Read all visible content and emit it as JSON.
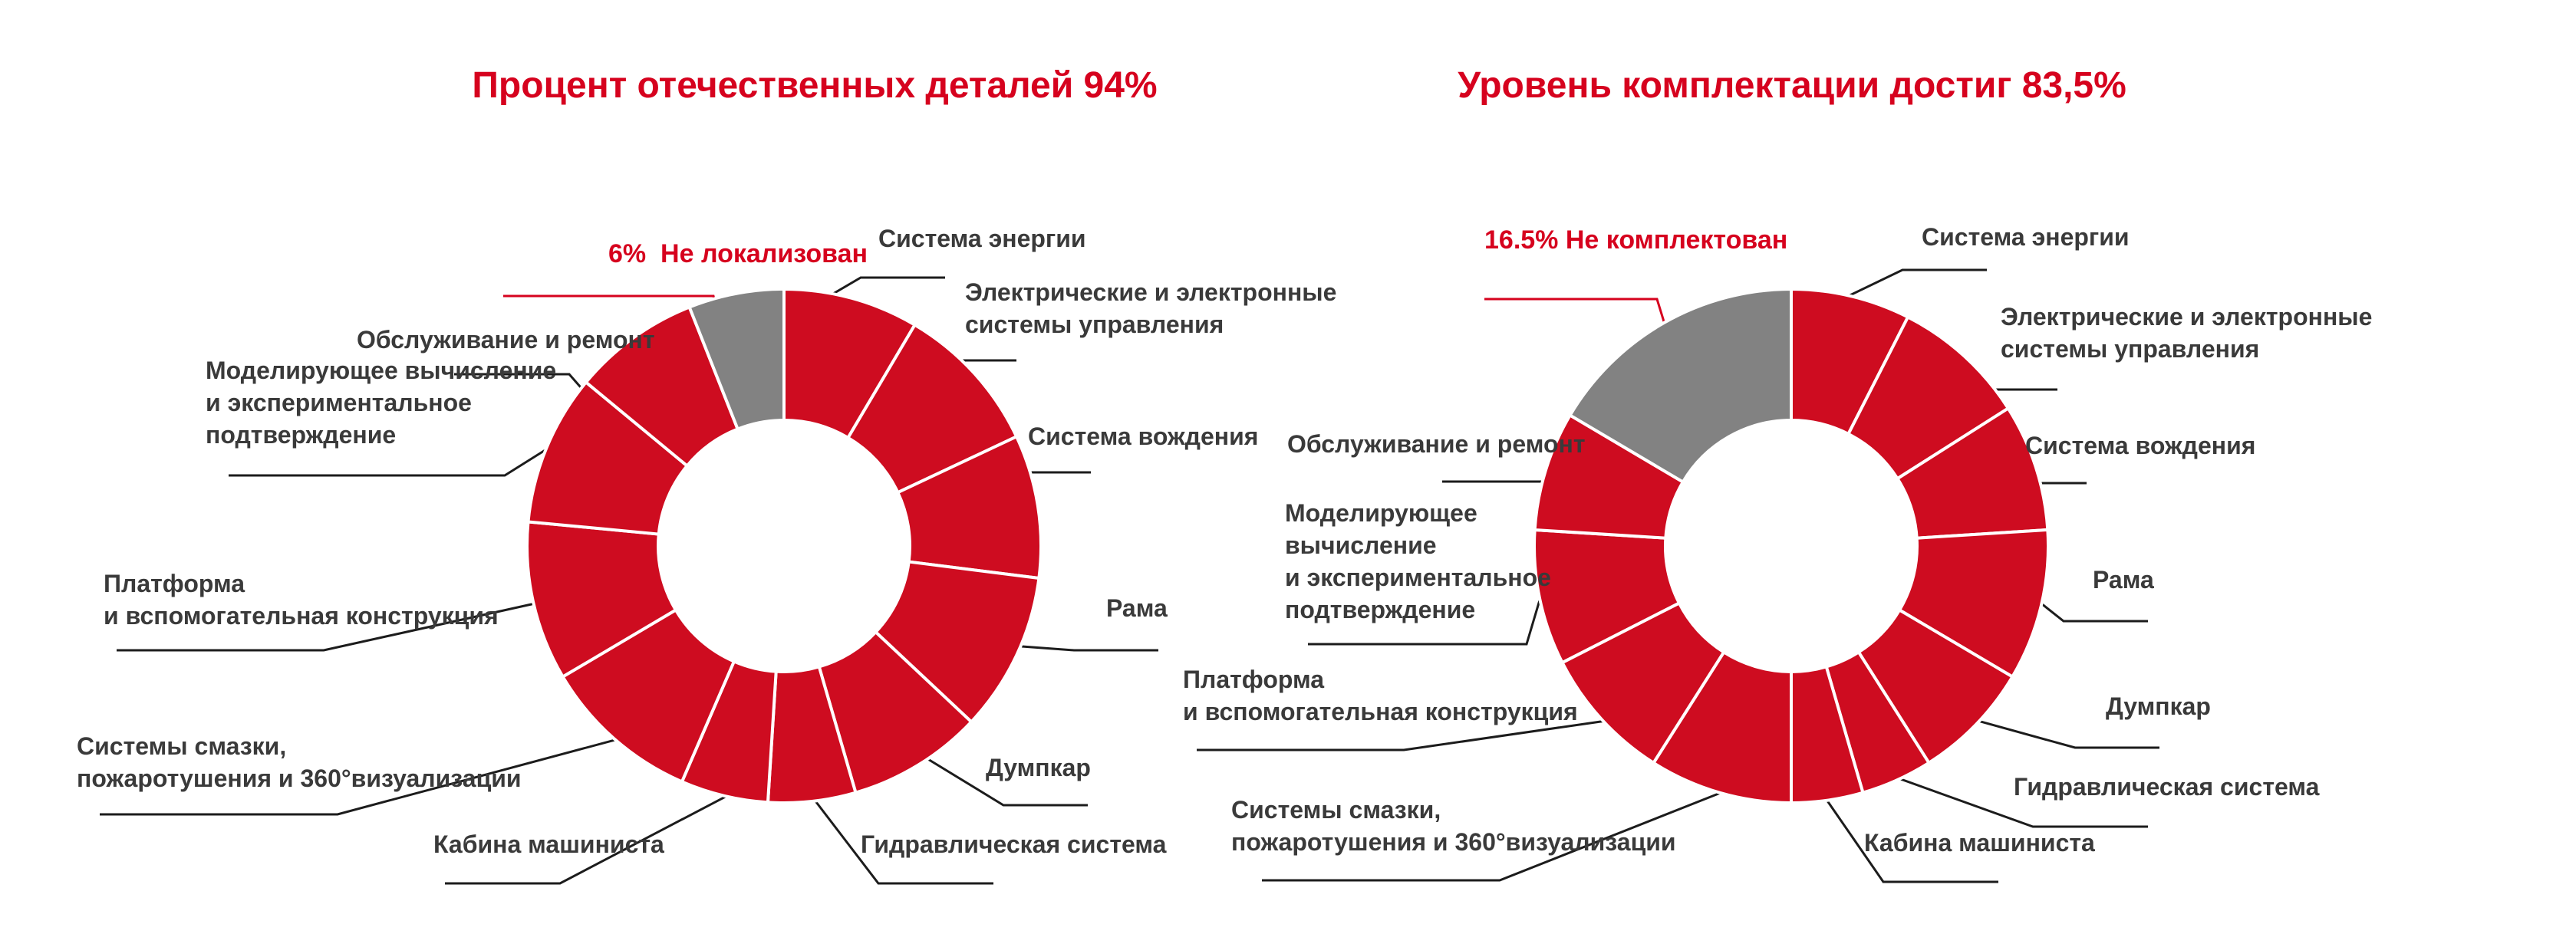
{
  "page": {
    "background": "#ffffff"
  },
  "colors": {
    "segment_red": "#CE0C20",
    "segment_gray": "#828282",
    "title_red": "#D6021E",
    "label_dark": "#3A3A3A",
    "leader_line_dark": "#1C1C1C",
    "leader_line_red": "#D6021E"
  },
  "chart_data": [
    {
      "type": "donut",
      "title": "Процент отечественных деталей 94%",
      "units": "percent",
      "localized_share": 94,
      "callout": {
        "label": "6%  Не локализован",
        "value": 6
      },
      "legend_position": "labels-around",
      "segments": [
        {
          "label": "Система энергии",
          "value": 8.5,
          "color_key": "red"
        },
        {
          "label": "Электрические и электронные\nсистемы управления",
          "value": 9.5,
          "color_key": "red"
        },
        {
          "label": "Система вождения",
          "value": 9,
          "color_key": "red"
        },
        {
          "label": "Рама",
          "value": 10,
          "color_key": "red"
        },
        {
          "label": "Думпкар",
          "value": 8.5,
          "color_key": "red"
        },
        {
          "label": "Гидравлическая система",
          "value": 5.5,
          "color_key": "red"
        },
        {
          "label": "Кабина машиниста",
          "value": 5.5,
          "color_key": "red"
        },
        {
          "label": "Системы смазки,\nпожаротушения и 360°визуализации",
          "value": 10,
          "color_key": "red"
        },
        {
          "label": "Платформа\nи вспомогательная конструкция",
          "value": 10,
          "color_key": "red"
        },
        {
          "label": "Моделирующее вычисление\nи экспериментальное\nподтверждение",
          "value": 9.5,
          "color_key": "red"
        },
        {
          "label": "Обслуживание и ремонт",
          "value": 8,
          "color_key": "red"
        },
        {
          "label": "Не локализован",
          "value": 6,
          "color_key": "gray",
          "is_callout": true
        }
      ]
    },
    {
      "type": "donut",
      "title": "Уровень комплектации достиг 83,5%",
      "units": "percent",
      "completed_share": 83.5,
      "callout": {
        "label": "16.5% Не комплектован",
        "value": 16.5
      },
      "legend_position": "labels-around",
      "segments": [
        {
          "label": "Система энергии",
          "value": 7.5,
          "color_key": "red"
        },
        {
          "label": "Электрические и электронные\nсистемы управления",
          "value": 8.5,
          "color_key": "red"
        },
        {
          "label": "Система вождения",
          "value": 8,
          "color_key": "red"
        },
        {
          "label": "Рама",
          "value": 9.5,
          "color_key": "red"
        },
        {
          "label": "Думпкар",
          "value": 7.5,
          "color_key": "red"
        },
        {
          "label": "Гидравлическая система",
          "value": 4.5,
          "color_key": "red"
        },
        {
          "label": "Кабина машиниста",
          "value": 4.5,
          "color_key": "red"
        },
        {
          "label": "Системы смазки,\nпожаротушения и 360°визуализации",
          "value": 9,
          "color_key": "red"
        },
        {
          "label": "Платформа\nи вспомогательная конструкция",
          "value": 8.5,
          "color_key": "red"
        },
        {
          "label": "Моделирующее\nвычисление\nи экспериментальное\nподтверждение",
          "value": 8.5,
          "color_key": "red"
        },
        {
          "label": "Обслуживание и ремонт",
          "value": 7.5,
          "color_key": "red"
        },
        {
          "label": "Не комплектован",
          "value": 16.5,
          "color_key": "gray",
          "is_callout": true
        }
      ]
    }
  ]
}
